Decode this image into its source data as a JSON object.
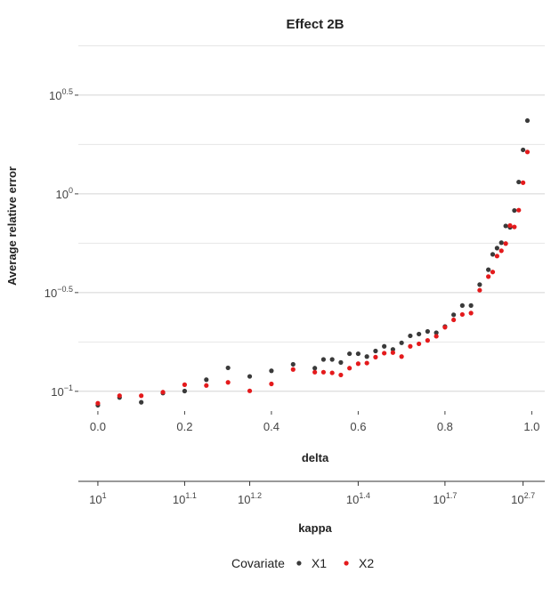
{
  "chart_data": {
    "type": "scatter",
    "title": "Effect 2B",
    "xlabel": "delta",
    "ylabel": "Average relative error",
    "secondary_x_axis": {
      "label": "kappa",
      "ticks": [
        {
          "base": "10",
          "exp": "1",
          "delta": 0.0
        },
        {
          "base": "10",
          "exp": "1.1",
          "delta": 0.2
        },
        {
          "base": "10",
          "exp": "1.2",
          "delta": 0.35
        },
        {
          "base": "10",
          "exp": "1.4",
          "delta": 0.6
        },
        {
          "base": "10",
          "exp": "1.7",
          "delta": 0.8
        },
        {
          "base": "10",
          "exp": "2.7",
          "delta": 0.98
        }
      ]
    },
    "x_ticks": [
      "0.0",
      "0.2",
      "0.4",
      "0.6",
      "0.8",
      "1.0"
    ],
    "xlim": [
      -0.045,
      1.03
    ],
    "y_scale": "log10",
    "y_ticks": [
      {
        "base": "10",
        "exp": "−1"
      },
      {
        "base": "10",
        "exp": "−0.5"
      },
      {
        "base": "10",
        "exp": "0"
      },
      {
        "base": "10",
        "exp": "0.5"
      }
    ],
    "ylim_log10": [
      -1.1,
      0.77
    ],
    "grid": "horizontal",
    "legend": {
      "position": "bottom",
      "title": "Covariate"
    },
    "series": [
      {
        "name": "X1",
        "color": "#3a3a3a",
        "x": [
          0.0,
          0.05,
          0.1,
          0.15,
          0.2,
          0.25,
          0.3,
          0.35,
          0.4,
          0.45,
          0.5,
          0.52,
          0.54,
          0.56,
          0.58,
          0.6,
          0.62,
          0.64,
          0.66,
          0.68,
          0.7,
          0.72,
          0.74,
          0.76,
          0.78,
          0.8,
          0.82,
          0.84,
          0.86,
          0.88,
          0.9,
          0.91,
          0.92,
          0.93,
          0.94,
          0.95,
          0.96,
          0.97,
          0.98,
          0.99
        ],
        "y": [
          0.085,
          0.093,
          0.088,
          0.098,
          0.1003,
          0.1145,
          0.1315,
          0.119,
          0.127,
          0.137,
          0.131,
          0.145,
          0.145,
          0.14,
          0.155,
          0.155,
          0.15,
          0.16,
          0.169,
          0.163,
          0.176,
          0.191,
          0.195,
          0.201,
          0.198,
          0.213,
          0.244,
          0.272,
          0.272,
          0.347,
          0.413,
          0.494,
          0.531,
          0.566,
          0.688,
          0.677,
          0.824,
          1.148,
          1.67,
          2.35
        ]
      },
      {
        "name": "X2",
        "color": "#e41a1c",
        "x": [
          0.0,
          0.05,
          0.1,
          0.15,
          0.2,
          0.25,
          0.3,
          0.35,
          0.4,
          0.45,
          0.5,
          0.52,
          0.54,
          0.56,
          0.58,
          0.6,
          0.62,
          0.64,
          0.66,
          0.68,
          0.7,
          0.72,
          0.74,
          0.76,
          0.78,
          0.8,
          0.82,
          0.84,
          0.86,
          0.88,
          0.9,
          0.91,
          0.92,
          0.93,
          0.94,
          0.95,
          0.96,
          0.97,
          0.98,
          0.99
        ],
        "y": [
          0.087,
          0.095,
          0.095,
          0.099,
          0.108,
          0.107,
          0.111,
          0.1005,
          0.109,
          0.129,
          0.125,
          0.125,
          0.124,
          0.121,
          0.131,
          0.138,
          0.139,
          0.149,
          0.156,
          0.157,
          0.15,
          0.169,
          0.174,
          0.181,
          0.19,
          0.211,
          0.23,
          0.245,
          0.249,
          0.325,
          0.381,
          0.402,
          0.484,
          0.515,
          0.56,
          0.691,
          0.68,
          0.827,
          1.139,
          1.63
        ]
      }
    ]
  }
}
